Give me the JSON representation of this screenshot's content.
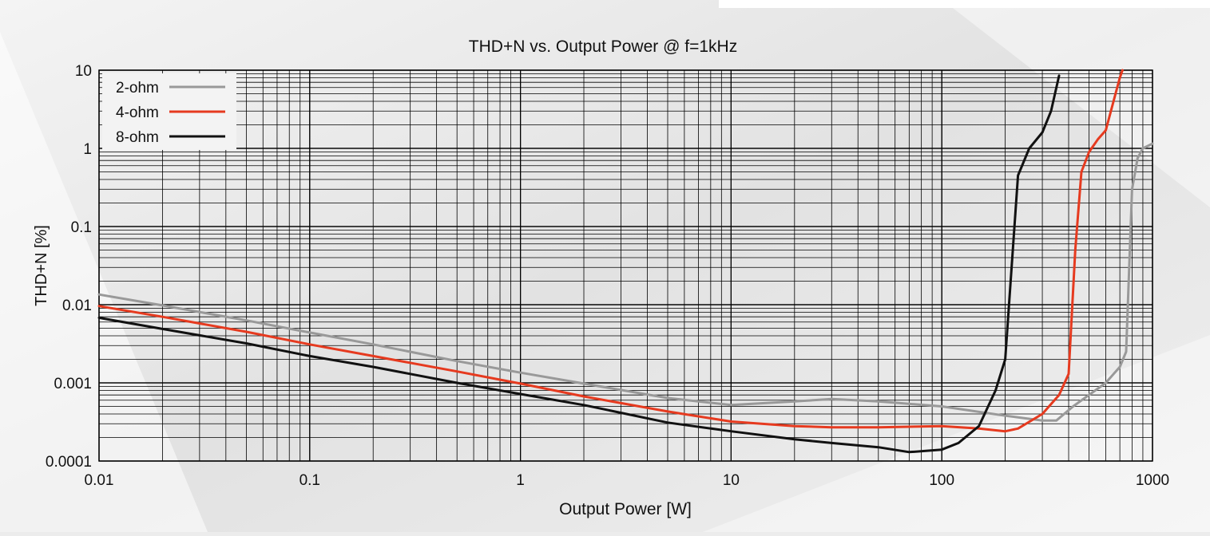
{
  "chart_data": {
    "type": "line",
    "title": "THD+N vs. Output Power @ f=1kHz",
    "xlabel": "Output Power [W]",
    "ylabel": "THD+N [%]",
    "x_scale": "log",
    "y_scale": "log",
    "xlim": [
      0.01,
      1000
    ],
    "ylim": [
      0.0001,
      10
    ],
    "x_ticks": [
      {
        "value": 0.01,
        "label": "0.01"
      },
      {
        "value": 0.1,
        "label": "0.1"
      },
      {
        "value": 1,
        "label": "1"
      },
      {
        "value": 10,
        "label": "10"
      },
      {
        "value": 100,
        "label": "100"
      },
      {
        "value": 1000,
        "label": "1000"
      }
    ],
    "y_ticks": [
      {
        "value": 0.0001,
        "label": "0.0001"
      },
      {
        "value": 0.001,
        "label": "0.001"
      },
      {
        "value": 0.01,
        "label": "0.01"
      },
      {
        "value": 0.1,
        "label": "0.1"
      },
      {
        "value": 1,
        "label": "1"
      },
      {
        "value": 10,
        "label": "10"
      }
    ],
    "grid": true,
    "legend_position": "top-left",
    "series": [
      {
        "name": "2-ohm",
        "color": "#999999",
        "points": [
          [
            0.01,
            0.0135
          ],
          [
            0.02,
            0.0098
          ],
          [
            0.05,
            0.0063
          ],
          [
            0.1,
            0.0044
          ],
          [
            0.2,
            0.0031
          ],
          [
            0.5,
            0.0019
          ],
          [
            1,
            0.00135
          ],
          [
            2,
            0.00098
          ],
          [
            5,
            0.00064
          ],
          [
            10,
            0.00052
          ],
          [
            20,
            0.00058
          ],
          [
            30,
            0.00062
          ],
          [
            50,
            0.00058
          ],
          [
            100,
            0.0005
          ],
          [
            200,
            0.00038
          ],
          [
            300,
            0.00033
          ],
          [
            350,
            0.00033
          ],
          [
            420,
            0.0005
          ],
          [
            600,
            0.001
          ],
          [
            700,
            0.0016
          ],
          [
            750,
            0.0025
          ],
          [
            800,
            0.3
          ],
          [
            850,
            0.75
          ],
          [
            900,
            1.0
          ],
          [
            1000,
            1.15
          ]
        ]
      },
      {
        "name": "4-ohm",
        "color": "#e63a1f",
        "points": [
          [
            0.01,
            0.0096
          ],
          [
            0.02,
            0.007
          ],
          [
            0.05,
            0.0045
          ],
          [
            0.1,
            0.0031
          ],
          [
            0.2,
            0.0022
          ],
          [
            0.5,
            0.0014
          ],
          [
            1,
            0.00098
          ],
          [
            2,
            0.00067
          ],
          [
            5,
            0.00043
          ],
          [
            10,
            0.00032
          ],
          [
            20,
            0.00028
          ],
          [
            30,
            0.00027
          ],
          [
            50,
            0.00027
          ],
          [
            100,
            0.00028
          ],
          [
            150,
            0.00026
          ],
          [
            200,
            0.00024
          ],
          [
            230,
            0.00026
          ],
          [
            300,
            0.0004
          ],
          [
            360,
            0.0007
          ],
          [
            400,
            0.0013
          ],
          [
            430,
            0.05
          ],
          [
            460,
            0.5
          ],
          [
            500,
            0.9
          ],
          [
            550,
            1.3
          ],
          [
            600,
            1.7
          ],
          [
            650,
            3.8
          ],
          [
            700,
            8
          ],
          [
            720,
            10
          ]
        ]
      },
      {
        "name": "8-ohm",
        "color": "#111111",
        "points": [
          [
            0.01,
            0.0068
          ],
          [
            0.02,
            0.0049
          ],
          [
            0.05,
            0.0032
          ],
          [
            0.1,
            0.0022
          ],
          [
            0.2,
            0.0016
          ],
          [
            0.5,
            0.001
          ],
          [
            1,
            0.00072
          ],
          [
            2,
            0.00052
          ],
          [
            5,
            0.00031
          ],
          [
            10,
            0.00024
          ],
          [
            20,
            0.00019
          ],
          [
            30,
            0.00017
          ],
          [
            50,
            0.00015
          ],
          [
            70,
            0.00013
          ],
          [
            100,
            0.00014
          ],
          [
            120,
            0.00017
          ],
          [
            150,
            0.00028
          ],
          [
            180,
            0.0008
          ],
          [
            200,
            0.002
          ],
          [
            230,
            0.45
          ],
          [
            260,
            1.0
          ],
          [
            300,
            1.6
          ],
          [
            330,
            3
          ],
          [
            360,
            8.5
          ]
        ]
      }
    ]
  }
}
